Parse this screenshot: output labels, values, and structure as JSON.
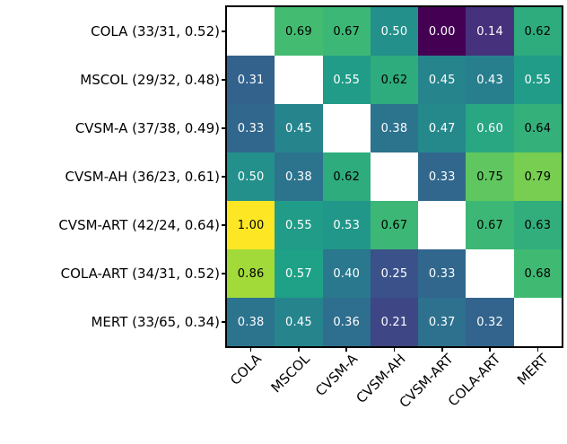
{
  "figure": {
    "background": "#ffffff",
    "colormap": "viridis",
    "viridis_stops": [
      "#440154",
      "#46327e",
      "#365c8d",
      "#277f8e",
      "#1fa187",
      "#4ac16d",
      "#a0da39",
      "#fde725"
    ],
    "masked_cell_color": "#ffffff",
    "spine_color": "#000000"
  },
  "chart_data": {
    "type": "heatmap",
    "title": "",
    "xlabel": "",
    "ylabel": "",
    "vmin": 0,
    "vmax": 1,
    "grid": false,
    "legend": "none",
    "diagonal_masked": true,
    "value_format": "2-decimals",
    "row_labels": [
      "COLA (33/31, 0.52)",
      "MSCOL (29/32, 0.48)",
      "CVSM-A (37/38, 0.49)",
      "CVSM-AH (36/23, 0.61)",
      "CVSM-ART (42/24, 0.64)",
      "COLA-ART (34/31, 0.52)",
      "MERT (33/65, 0.34)"
    ],
    "col_labels": [
      "COLA",
      "MSCOL",
      "CVSM-A",
      "CVSM-AH",
      "CVSM-ART",
      "COLA-ART",
      "MERT"
    ],
    "values": [
      [
        null,
        0.69,
        0.67,
        0.5,
        0.0,
        0.14,
        0.62
      ],
      [
        0.31,
        null,
        0.55,
        0.62,
        0.45,
        0.43,
        0.55
      ],
      [
        0.33,
        0.45,
        null,
        0.38,
        0.47,
        0.6,
        0.64
      ],
      [
        0.5,
        0.38,
        0.62,
        null,
        0.33,
        0.75,
        0.79
      ],
      [
        1.0,
        0.55,
        0.53,
        0.67,
        null,
        0.67,
        0.63
      ],
      [
        0.86,
        0.57,
        0.4,
        0.25,
        0.33,
        null,
        0.68
      ],
      [
        0.38,
        0.45,
        0.36,
        0.21,
        0.37,
        0.32,
        null
      ]
    ],
    "cell_text_colors": {
      "on_light": "#000000",
      "on_dark": "#ffffff"
    }
  }
}
